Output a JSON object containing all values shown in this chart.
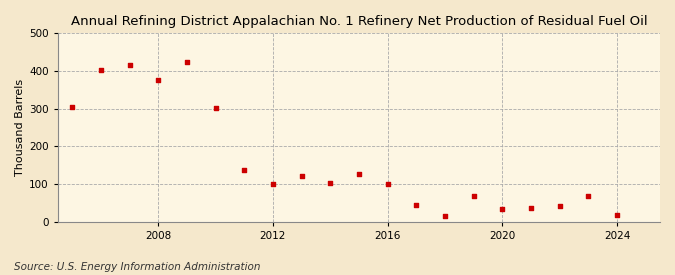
{
  "title": "Annual Refining District Appalachian No. 1 Refinery Net Production of Residual Fuel Oil",
  "ylabel": "Thousand Barrels",
  "source": "Source: U.S. Energy Information Administration",
  "background_color": "#f5e8cc",
  "plot_background_color": "#fdf6e3",
  "years": [
    2005,
    2006,
    2007,
    2008,
    2009,
    2010,
    2011,
    2012,
    2013,
    2014,
    2015,
    2016,
    2017,
    2018,
    2019,
    2020,
    2021,
    2022,
    2023,
    2024
  ],
  "values": [
    305,
    403,
    415,
    377,
    425,
    302,
    137,
    100,
    122,
    103,
    127,
    100,
    45,
    15,
    68,
    35,
    37,
    42,
    67,
    18
  ],
  "marker_color": "#cc0000",
  "ylim": [
    0,
    500
  ],
  "yticks": [
    0,
    100,
    200,
    300,
    400,
    500
  ],
  "xlim": [
    2004.5,
    2025.5
  ],
  "xticks": [
    2008,
    2012,
    2016,
    2020,
    2024
  ],
  "grid_color": "#aaaaaa",
  "grid_style": "--",
  "title_fontsize": 9.5,
  "label_fontsize": 8,
  "tick_fontsize": 7.5,
  "source_fontsize": 7.5
}
